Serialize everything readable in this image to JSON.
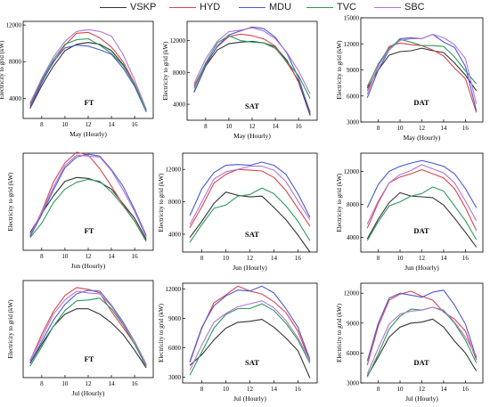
{
  "legend": [
    {
      "name": "VSKP",
      "color": "#333333"
    },
    {
      "name": "HYD",
      "color": "#d9454b"
    },
    {
      "name": "MDU",
      "color": "#4a5ad6"
    },
    {
      "name": "TVC",
      "color": "#2e9a5a"
    },
    {
      "name": "SBC",
      "color": "#b276d0"
    }
  ],
  "chart_data": [
    {
      "type": "line",
      "title": "FT",
      "xlabel": "May (Hourly)",
      "ylabel": "Electricity to grid (kW)",
      "x": [
        7,
        8,
        9,
        10,
        11,
        12,
        13,
        14,
        15,
        16,
        17
      ],
      "xticks": [
        8,
        10,
        12,
        14,
        16
      ],
      "xlim": [
        6.4,
        17.6
      ],
      "ylim": [
        1800,
        12400
      ],
      "yticks": [
        4000,
        8000,
        12000
      ],
      "grid": false,
      "series": [
        {
          "name": "VSKP",
          "values": [
            2900,
            5400,
            7500,
            9200,
            9900,
            10100,
            9900,
            9200,
            7700,
            5500,
            2600
          ]
        },
        {
          "name": "HYD",
          "values": [
            3200,
            5900,
            7900,
            9800,
            11100,
            11200,
            10600,
            9600,
            8000,
            5600,
            2700
          ]
        },
        {
          "name": "MDU",
          "values": [
            3000,
            5700,
            8000,
            9500,
            9800,
            9700,
            9300,
            8800,
            7300,
            5300,
            2500
          ]
        },
        {
          "name": "TVC",
          "values": [
            3400,
            6000,
            8200,
            9900,
            10400,
            10500,
            9800,
            8900,
            7600,
            5500,
            2600
          ]
        },
        {
          "name": "SBC",
          "values": [
            3500,
            6200,
            8500,
            10200,
            11300,
            11500,
            11300,
            10800,
            8800,
            6000,
            2800
          ]
        }
      ]
    },
    {
      "type": "line",
      "title": "SAT",
      "xlabel": "May (Hourly)",
      "ylabel": "Electricity to grid (kW)",
      "x": [
        7,
        8,
        9,
        10,
        11,
        12,
        13,
        14,
        15,
        16,
        17
      ],
      "xticks": [
        8,
        10,
        12,
        14,
        16
      ],
      "xlim": [
        6.4,
        17.6
      ],
      "ylim": [
        2000,
        14400
      ],
      "yticks": [
        4000,
        8000,
        12000
      ],
      "grid": false,
      "series": [
        {
          "name": "VSKP",
          "values": [
            5500,
            8800,
            10800,
            11600,
            11800,
            11900,
            11700,
            11200,
            9500,
            6800,
            2600
          ]
        },
        {
          "name": "HYD",
          "values": [
            6300,
            9100,
            11200,
            12500,
            12800,
            12600,
            12200,
            11300,
            9200,
            7000,
            3000
          ]
        },
        {
          "name": "MDU",
          "values": [
            5600,
            8900,
            11300,
            12700,
            13200,
            13700,
            13500,
            12400,
            10400,
            7300,
            2800
          ]
        },
        {
          "name": "TVC",
          "values": [
            6000,
            9200,
            11700,
            12600,
            12000,
            11800,
            11700,
            11000,
            9300,
            7600,
            4700
          ]
        },
        {
          "name": "SBC",
          "values": [
            6600,
            9700,
            11900,
            13100,
            13300,
            13600,
            13200,
            12200,
            10500,
            8200,
            5300
          ]
        }
      ]
    },
    {
      "type": "line",
      "title": "DAT",
      "xlabel": "May (Hourly)",
      "ylabel": "Electricity to grid (kW)",
      "x": [
        7,
        8,
        9,
        10,
        11,
        12,
        13,
        14,
        15,
        16,
        17
      ],
      "xticks": [
        8,
        10,
        12,
        14,
        16
      ],
      "xlim": [
        6.4,
        17.6
      ],
      "ylim": [
        3000,
        15000
      ],
      "yticks": [
        3000,
        6000,
        9000,
        12000,
        15000
      ],
      "grid": false,
      "series": [
        {
          "name": "VSKP",
          "values": [
            6900,
            9000,
            10700,
            11100,
            11200,
            11500,
            11200,
            11000,
            9800,
            8400,
            6600
          ]
        },
        {
          "name": "HYD",
          "values": [
            6600,
            9400,
            11700,
            12100,
            11900,
            11800,
            11300,
            10600,
            9200,
            8000,
            4100
          ]
        },
        {
          "name": "MDU",
          "values": [
            5800,
            9000,
            11300,
            12600,
            12700,
            12600,
            13100,
            12200,
            11600,
            9400,
            4300
          ]
        },
        {
          "name": "TVC",
          "values": [
            7100,
            9700,
            11500,
            12500,
            12200,
            11800,
            11800,
            11700,
            10500,
            8900,
            7400
          ]
        },
        {
          "name": "SBC",
          "values": [
            6200,
            9500,
            11300,
            12400,
            12600,
            12600,
            13100,
            12700,
            11900,
            10300,
            5100
          ]
        }
      ]
    },
    {
      "type": "line",
      "title": "FT",
      "xlabel": "Jun (Hourly)",
      "ylabel": "Electricity to grid (kW)",
      "x": [
        7,
        8,
        9,
        10,
        11,
        12,
        13,
        14,
        15,
        16,
        17
      ],
      "xticks": [
        8,
        10,
        12,
        14,
        16
      ],
      "xlim": [
        6.4,
        17.6
      ],
      "ylim": [
        0,
        10000
      ],
      "yticks": [],
      "grid": false,
      "series": [
        {
          "name": "VSKP",
          "values": [
            1800,
            3800,
            5600,
            7100,
            7500,
            7400,
            7000,
            6300,
            4800,
            3300,
            1100
          ]
        },
        {
          "name": "HYD",
          "values": [
            1500,
            4000,
            7000,
            9000,
            10100,
            9800,
            8400,
            6600,
            4700,
            3000,
            900
          ]
        },
        {
          "name": "MDU",
          "values": [
            1400,
            3700,
            6200,
            8500,
            9600,
            9900,
            9700,
            8300,
            6600,
            4200,
            1500
          ]
        },
        {
          "name": "TVC",
          "values": [
            1300,
            2800,
            4900,
            6300,
            7000,
            7300,
            7100,
            6000,
            4600,
            3000,
            900
          ]
        },
        {
          "name": "SBC",
          "values": [
            1600,
            3900,
            6500,
            8700,
            9800,
            9700,
            9600,
            8200,
            6200,
            4000,
            1300
          ]
        }
      ]
    },
    {
      "type": "line",
      "title": "SAT",
      "xlabel": "Jun (Hourly)",
      "ylabel": "Electricity to grid (kW)",
      "x": [
        7,
        8,
        9,
        10,
        11,
        12,
        13,
        14,
        15,
        16,
        17
      ],
      "xticks": [
        8,
        10,
        12,
        14,
        16
      ],
      "xlim": [
        6.4,
        17.6
      ],
      "ylim": [
        1800,
        14000
      ],
      "yticks": [
        4000,
        8000,
        12000
      ],
      "grid": false,
      "series": [
        {
          "name": "VSKP",
          "values": [
            3600,
            5600,
            7800,
            9200,
            8800,
            8600,
            8700,
            7300,
            5800,
            3900,
            1800
          ]
        },
        {
          "name": "HYD",
          "values": [
            4800,
            7400,
            10300,
            11400,
            12000,
            11900,
            11800,
            11000,
            9400,
            7200,
            5000
          ]
        },
        {
          "name": "MDU",
          "values": [
            6300,
            9600,
            11600,
            12500,
            12600,
            12500,
            12900,
            12500,
            11400,
            9000,
            6100
          ]
        },
        {
          "name": "TVC",
          "values": [
            3000,
            5200,
            7200,
            7600,
            8700,
            8900,
            9700,
            9000,
            7500,
            5600,
            3200
          ]
        },
        {
          "name": "SBC",
          "values": [
            5200,
            8000,
            10800,
            11700,
            12000,
            12400,
            12400,
            11900,
            10500,
            8100,
            5800
          ]
        }
      ]
    },
    {
      "type": "line",
      "title": "DAT",
      "xlabel": "Jun (Hourly)",
      "ylabel": "Electricity to grid (kW)",
      "x": [
        7,
        8,
        9,
        10,
        11,
        12,
        13,
        14,
        15,
        16,
        17
      ],
      "xticks": [
        8,
        10,
        12,
        14,
        16
      ],
      "xlim": [
        6.4,
        17.6
      ],
      "ylim": [
        2200,
        14200
      ],
      "yticks": [
        4000,
        8000,
        12000
      ],
      "grid": false,
      "series": [
        {
          "name": "VSKP",
          "values": [
            3800,
            6200,
            8200,
            9400,
            9000,
            8900,
            8800,
            7900,
            6300,
            4600,
            2800
          ]
        },
        {
          "name": "HYD",
          "values": [
            5100,
            8200,
            10600,
            11300,
            11700,
            12200,
            11700,
            11200,
            9900,
            7600,
            4800
          ]
        },
        {
          "name": "MDU",
          "values": [
            7600,
            10400,
            12000,
            12600,
            13000,
            13300,
            13000,
            12600,
            11700,
            9900,
            7600
          ]
        },
        {
          "name": "TVC",
          "values": [
            3600,
            5900,
            7800,
            8300,
            9000,
            9300,
            10100,
            9600,
            7800,
            6000,
            3700
          ]
        },
        {
          "name": "SBC",
          "values": [
            5600,
            8400,
            10600,
            11600,
            12100,
            12800,
            12300,
            11800,
            10600,
            8400,
            6000
          ]
        }
      ]
    },
    {
      "type": "line",
      "title": "FT",
      "xlabel": "Jul (Hourly)",
      "ylabel": "Electricity to grid (kW)",
      "x": [
        7,
        8,
        9,
        10,
        11,
        12,
        13,
        14,
        15,
        16,
        17
      ],
      "xticks": [
        8,
        10,
        12,
        14,
        16
      ],
      "xlim": [
        6.4,
        17.6
      ],
      "ylim": [
        0,
        11000
      ],
      "yticks": [],
      "grid": false,
      "series": [
        {
          "name": "VSKP",
          "values": [
            1600,
            3800,
            5800,
            7200,
            7800,
            7800,
            7200,
            6200,
            4900,
            3100,
            1100
          ]
        },
        {
          "name": "HYD",
          "values": [
            1900,
            4900,
            7500,
            9300,
            10200,
            10000,
            9600,
            7500,
            5700,
            3800,
            1300
          ]
        },
        {
          "name": "MDU",
          "values": [
            1700,
            4100,
            6500,
            8300,
            9500,
            9900,
            9800,
            8200,
            6300,
            4100,
            1500
          ]
        },
        {
          "name": "TVC",
          "values": [
            1300,
            3500,
            5800,
            7600,
            8700,
            8800,
            9000,
            7800,
            6000,
            3800,
            1200
          ]
        },
        {
          "name": "SBC",
          "values": [
            2000,
            4500,
            7200,
            8800,
            9800,
            9600,
            9500,
            8100,
            6100,
            4100,
            1400
          ]
        }
      ]
    },
    {
      "type": "line",
      "title": "SAT",
      "xlabel": "Jul (Hourly)",
      "ylabel": "Electricity to grid (kW)",
      "x": [
        7,
        8,
        9,
        10,
        11,
        12,
        13,
        14,
        15,
        16,
        17
      ],
      "xticks": [
        8,
        10,
        12,
        14,
        16
      ],
      "xlim": [
        6.4,
        17.6
      ],
      "ylim": [
        2400,
        12600
      ],
      "yticks": [
        3000,
        6000,
        9000,
        12000
      ],
      "grid": false,
      "series": [
        {
          "name": "VSKP",
          "values": [
            4200,
            5300,
            6800,
            8000,
            8600,
            8700,
            8900,
            8100,
            7000,
            5700,
            2900
          ]
        },
        {
          "name": "HYD",
          "values": [
            4500,
            8000,
            10600,
            11400,
            12300,
            11800,
            11500,
            10700,
            9600,
            7700,
            4600
          ]
        },
        {
          "name": "MDU",
          "values": [
            4600,
            8100,
            10300,
            11300,
            11900,
            11800,
            12300,
            11600,
            10000,
            8100,
            4800
          ]
        },
        {
          "name": "TVC",
          "values": [
            3200,
            5600,
            8000,
            9400,
            10000,
            10000,
            10500,
            9800,
            8500,
            6800,
            4400
          ]
        },
        {
          "name": "SBC",
          "values": [
            3700,
            6300,
            8600,
            9500,
            10200,
            10500,
            10800,
            10100,
            8800,
            7000,
            4700
          ]
        }
      ]
    },
    {
      "type": "line",
      "title": "DAT",
      "xlabel": "Jul (Hourly)",
      "ylabel": "Electricity to grid (kW)",
      "x": [
        7,
        8,
        9,
        10,
        11,
        12,
        13,
        14,
        15,
        16,
        17
      ],
      "xticks": [
        8,
        10,
        12,
        14,
        16
      ],
      "xlim": [
        6.4,
        17.6
      ],
      "ylim": [
        3000,
        13000
      ],
      "yticks": [
        3000,
        6000,
        9000,
        12000
      ],
      "grid": false,
      "series": [
        {
          "name": "VSKP",
          "values": [
            3700,
            5600,
            7600,
            8600,
            9000,
            9100,
            9400,
            8600,
            7200,
            6000,
            4200
          ]
        },
        {
          "name": "HYD",
          "values": [
            4800,
            8700,
            11300,
            11900,
            12200,
            11700,
            11300,
            10100,
            9400,
            8200,
            5300
          ]
        },
        {
          "name": "MDU",
          "values": [
            5200,
            9000,
            11500,
            12000,
            11800,
            11600,
            12100,
            12300,
            10800,
            8900,
            5500
          ]
        },
        {
          "name": "TVC",
          "values": [
            3600,
            5900,
            8400,
            9700,
            10400,
            10300,
            10600,
            10200,
            9000,
            7300,
            5000
          ]
        },
        {
          "name": "SBC",
          "values": [
            3900,
            6500,
            8900,
            9900,
            10200,
            10300,
            10600,
            10300,
            9100,
            7600,
            5700
          ]
        }
      ]
    }
  ]
}
